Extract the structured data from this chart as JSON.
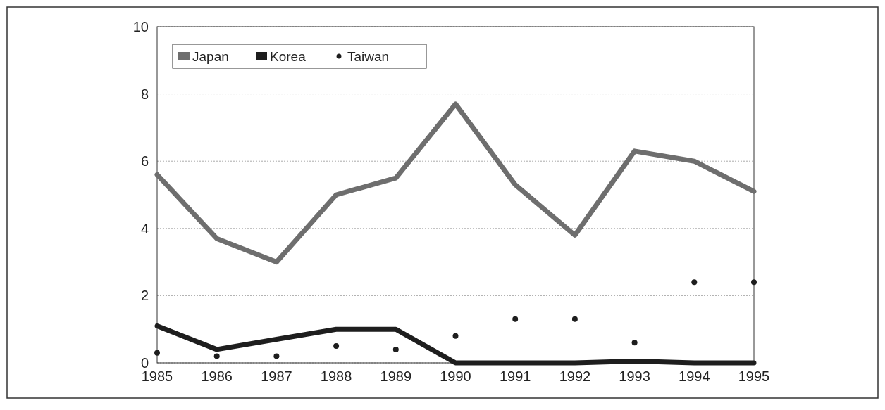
{
  "chart_data": {
    "type": "line",
    "categories": [
      "1985",
      "1986",
      "1987",
      "1988",
      "1989",
      "1990",
      "1991",
      "1992",
      "1993",
      "1994",
      "1995"
    ],
    "series": [
      {
        "name": "Japan",
        "color": "#6e6e6e",
        "values": [
          5.6,
          3.7,
          3.0,
          5.0,
          5.5,
          7.7,
          5.3,
          3.8,
          6.3,
          6.0,
          5.1
        ]
      },
      {
        "name": "Korea",
        "color": "#1e1e1e",
        "values": [
          1.1,
          0.4,
          0.7,
          1.0,
          1.0,
          0.0,
          0.0,
          0.0,
          0.05,
          0.0,
          0.0
        ]
      },
      {
        "name": "Taiwan",
        "type": "scatter",
        "color": "#1e1e1e",
        "values": [
          0.3,
          0.2,
          0.2,
          0.5,
          0.4,
          0.8,
          1.3,
          1.3,
          0.6,
          2.4,
          2.4
        ]
      }
    ],
    "ylim": [
      0,
      10
    ],
    "yticks": [
      0,
      2,
      4,
      6,
      8,
      10
    ],
    "grid": "y",
    "legend": "top left"
  }
}
